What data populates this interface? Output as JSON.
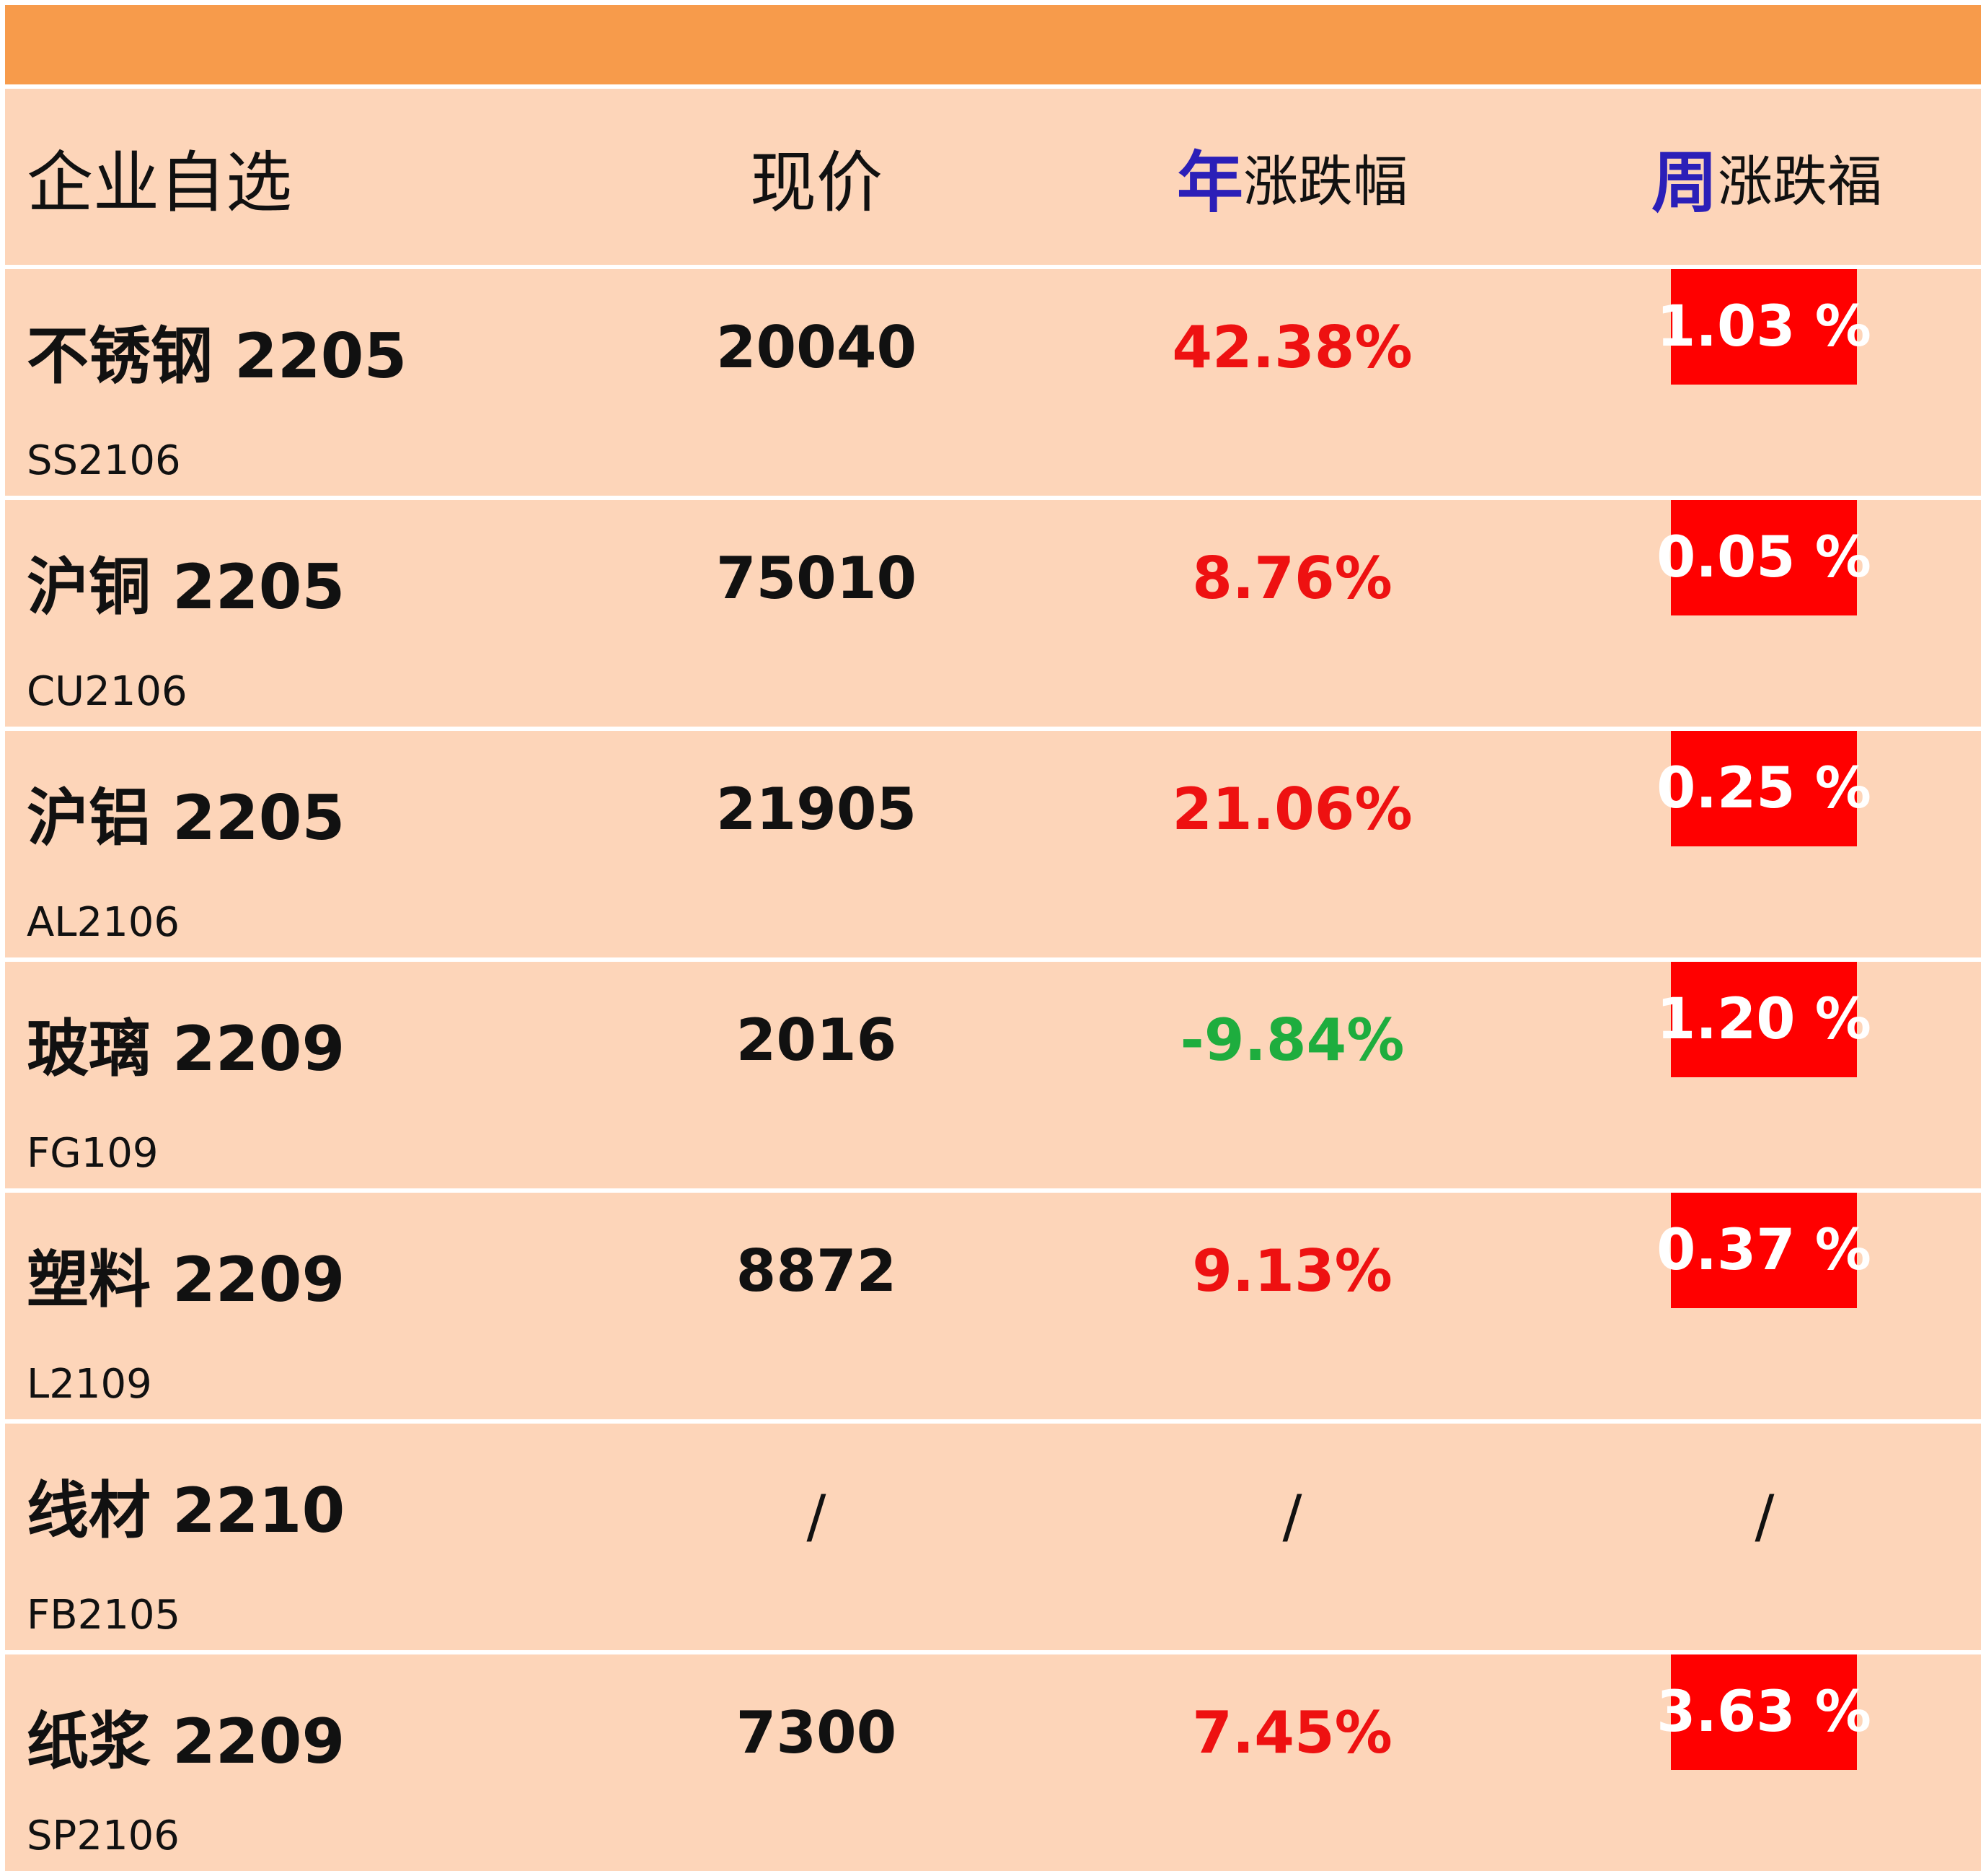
{
  "header": {
    "col1": "企业自选",
    "col2": "现价",
    "col3_accent": "年",
    "col3_rest": "涨跌幅",
    "col4_accent": "周",
    "col4_rest": "涨跌福"
  },
  "rows": [
    {
      "name": "不锈钢 2205",
      "code": "SS2106",
      "price": "20040",
      "yoy": "42.38%",
      "week": "1.03 %"
    },
    {
      "name": "沪铜 2205",
      "code": "CU2106",
      "price": "75010",
      "yoy": "8.76%",
      "week": "0.05 %"
    },
    {
      "name": "沪铝 2205",
      "code": "AL2106",
      "price": "21905",
      "yoy": "21.06%",
      "week": "0.25 %"
    },
    {
      "name": "玻璃 2209",
      "code": "FG109",
      "price": "2016",
      "yoy": "-9.84%",
      "week": "1.20 %"
    },
    {
      "name": "塑料 2209",
      "code": "L2109",
      "price": "8872",
      "yoy": "9.13%",
      "week": "0.37 %"
    },
    {
      "name": "线材 2210",
      "code": "FB2105",
      "price": "/",
      "yoy": "/",
      "week": "/"
    },
    {
      "name": "纸浆 2209",
      "code": "SP2106",
      "price": "7300",
      "yoy": "7.45%",
      "week": "3.63 %"
    }
  ],
  "colors": {
    "top_bar": "#f79b4b",
    "row_bg": "#fdd5b9",
    "up": "#ee1111",
    "down": "#1ead3e",
    "week_box": "#ff0000",
    "header_accent": "#2b1fb8"
  }
}
